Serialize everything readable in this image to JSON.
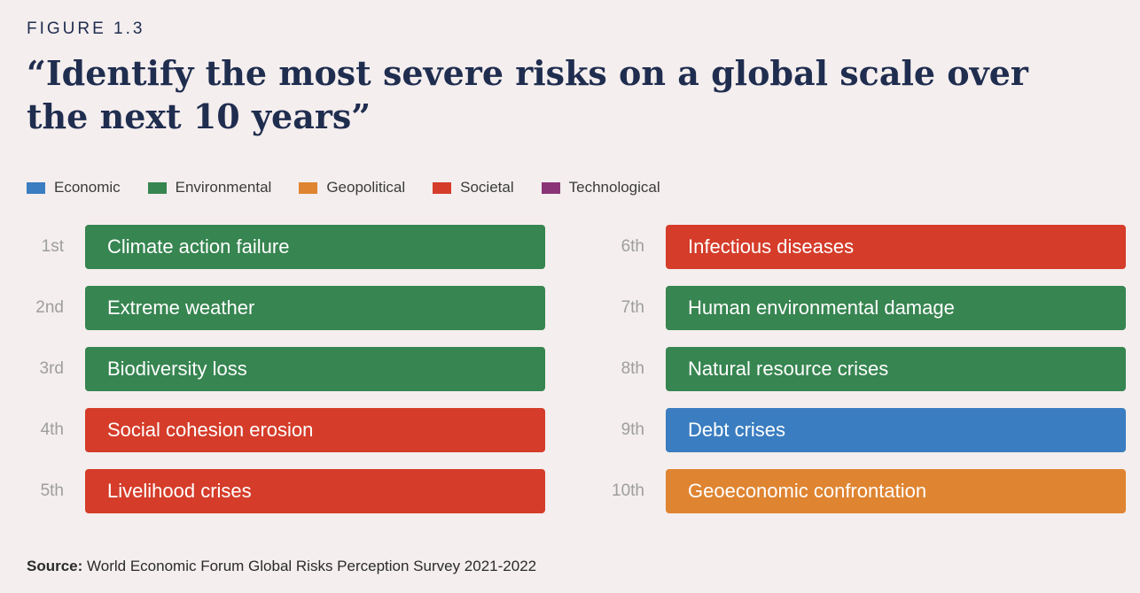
{
  "figure_label": "FIGURE 1.3",
  "colors": {
    "Economic": "#3a7dc0",
    "Environmental": "#378551",
    "Geopolitical": "#df8431",
    "Societal": "#d53c2a",
    "Technological": "#8a3478"
  },
  "chart_data": {
    "type": "table",
    "title": "“Identify the most severe risks on a global scale over the next 10 years”",
    "legend": [
      "Economic",
      "Environmental",
      "Geopolitical",
      "Societal",
      "Technological"
    ],
    "legend_placement": "top-left",
    "rows": [
      {
        "rank": "1st",
        "label": "Climate action failure",
        "category": "Environmental"
      },
      {
        "rank": "2nd",
        "label": "Extreme weather",
        "category": "Environmental"
      },
      {
        "rank": "3rd",
        "label": "Biodiversity loss",
        "category": "Environmental"
      },
      {
        "rank": "4th",
        "label": "Social cohesion erosion",
        "category": "Societal"
      },
      {
        "rank": "5th",
        "label": "Livelihood crises",
        "category": "Societal"
      },
      {
        "rank": "6th",
        "label": "Infectious diseases",
        "category": "Societal"
      },
      {
        "rank": "7th",
        "label": "Human environmental damage",
        "category": "Environmental"
      },
      {
        "rank": "8th",
        "label": "Natural resource crises",
        "category": "Environmental"
      },
      {
        "rank": "9th",
        "label": "Debt crises",
        "category": "Economic"
      },
      {
        "rank": "10th",
        "label": "Geoeconomic confrontation",
        "category": "Geopolitical"
      }
    ]
  },
  "source": {
    "label": "Source:",
    "text": " World Economic Forum Global Risks Perception Survey 2021-2022"
  }
}
